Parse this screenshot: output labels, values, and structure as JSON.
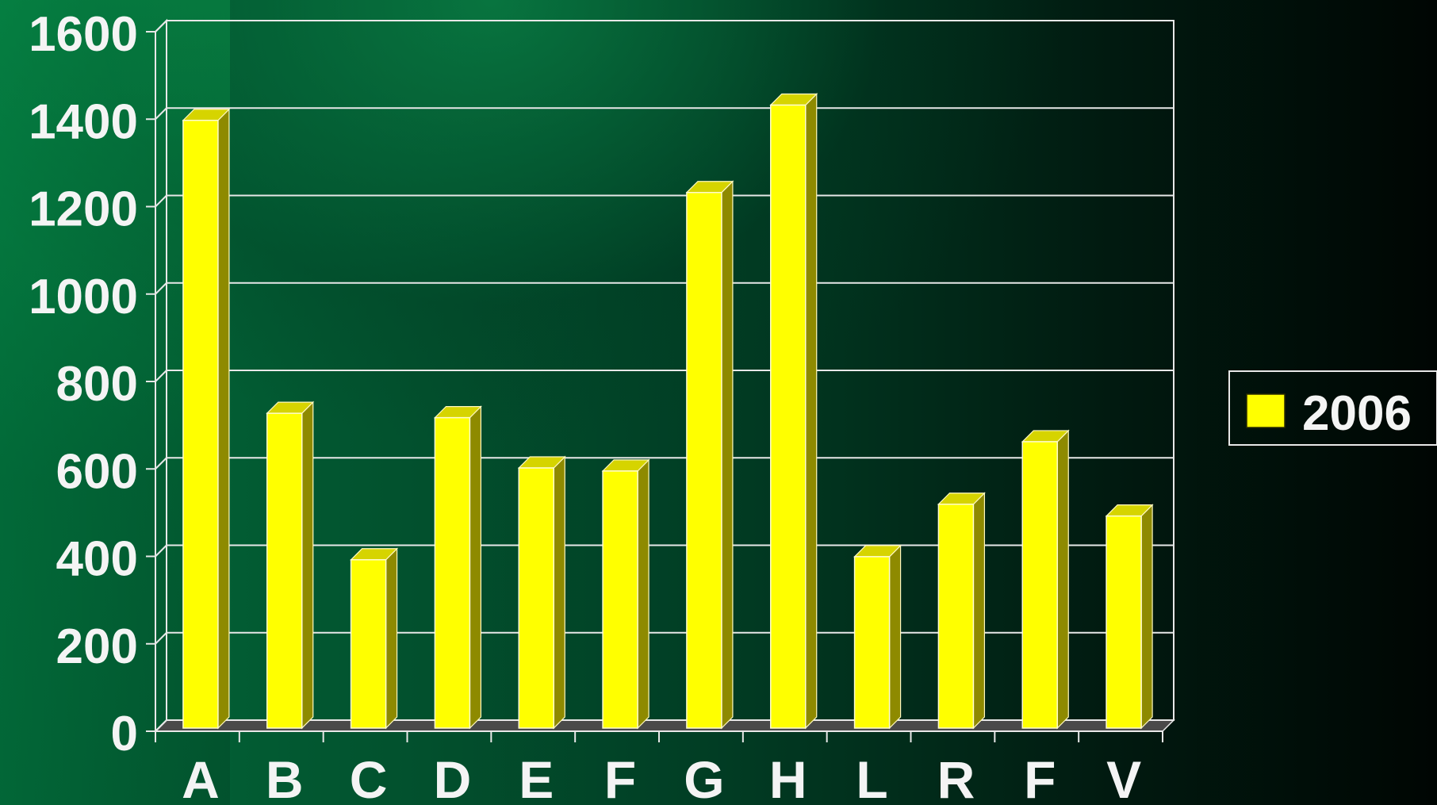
{
  "chart_data": {
    "type": "bar",
    "categories": [
      "A",
      "B",
      "C",
      "D",
      "E",
      "F",
      "G",
      "H",
      "L",
      "R",
      "F",
      "V"
    ],
    "series": [
      {
        "name": "2006",
        "values": [
          1390,
          720,
          385,
          710,
          595,
          588,
          1225,
          1425,
          392,
          512,
          655,
          485
        ]
      }
    ],
    "ylim": [
      0,
      1600
    ],
    "yticks": [
      "0",
      "200",
      "400",
      "600",
      "800",
      "1000",
      "1200",
      "1400",
      "1600"
    ],
    "grid": true,
    "legend_position": "right",
    "colors": {
      "bar_front": "#ffff00",
      "bar_side": "#8e8a00",
      "bar_top": "#d6d400",
      "grid": "#e8e8e8",
      "text": "#f4f4f4"
    }
  }
}
